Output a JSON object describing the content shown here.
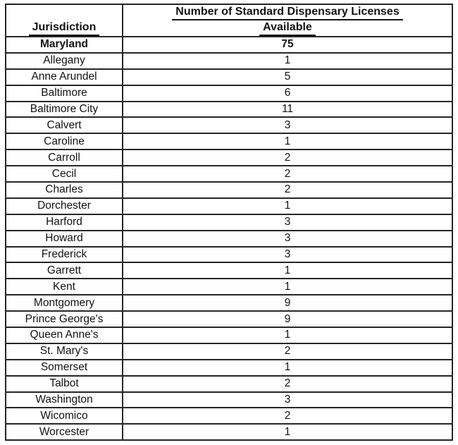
{
  "table": {
    "headers": {
      "jurisdiction": "Jurisdiction",
      "licenses_line1": "Number of Standard Dispensary Licenses",
      "licenses_line2": "Available"
    },
    "rows": [
      {
        "jurisdiction": "Maryland",
        "licenses": "75",
        "bold": true
      },
      {
        "jurisdiction": "Allegany",
        "licenses": "1",
        "bold": false
      },
      {
        "jurisdiction": "Anne Arundel",
        "licenses": "5",
        "bold": false
      },
      {
        "jurisdiction": "Baltimore",
        "licenses": "6",
        "bold": false
      },
      {
        "jurisdiction": "Baltimore City",
        "licenses": "11",
        "bold": false
      },
      {
        "jurisdiction": "Calvert",
        "licenses": "3",
        "bold": false
      },
      {
        "jurisdiction": "Caroline",
        "licenses": "1",
        "bold": false
      },
      {
        "jurisdiction": "Carroll",
        "licenses": "2",
        "bold": false
      },
      {
        "jurisdiction": "Cecil",
        "licenses": "2",
        "bold": false
      },
      {
        "jurisdiction": "Charles",
        "licenses": "2",
        "bold": false
      },
      {
        "jurisdiction": "Dorchester",
        "licenses": "1",
        "bold": false
      },
      {
        "jurisdiction": "Harford",
        "licenses": "3",
        "bold": false
      },
      {
        "jurisdiction": "Howard",
        "licenses": "3",
        "bold": false
      },
      {
        "jurisdiction": "Frederick",
        "licenses": "3",
        "bold": false
      },
      {
        "jurisdiction": "Garrett",
        "licenses": "1",
        "bold": false
      },
      {
        "jurisdiction": "Kent",
        "licenses": "1",
        "bold": false
      },
      {
        "jurisdiction": "Montgomery",
        "licenses": "9",
        "bold": false
      },
      {
        "jurisdiction": "Prince George's",
        "licenses": "9",
        "bold": false
      },
      {
        "jurisdiction": "Queen Anne's",
        "licenses": "1",
        "bold": false
      },
      {
        "jurisdiction": "St. Mary's",
        "licenses": "2",
        "bold": false
      },
      {
        "jurisdiction": "Somerset",
        "licenses": "1",
        "bold": false
      },
      {
        "jurisdiction": "Talbot",
        "licenses": "2",
        "bold": false
      },
      {
        "jurisdiction": "Washington",
        "licenses": "3",
        "bold": false
      },
      {
        "jurisdiction": "Wicomico",
        "licenses": "2",
        "bold": false
      },
      {
        "jurisdiction": "Worcester",
        "licenses": "1",
        "bold": false
      }
    ]
  },
  "colors": {
    "border": "#262626",
    "text": "#121212",
    "background": "#ffffff"
  }
}
